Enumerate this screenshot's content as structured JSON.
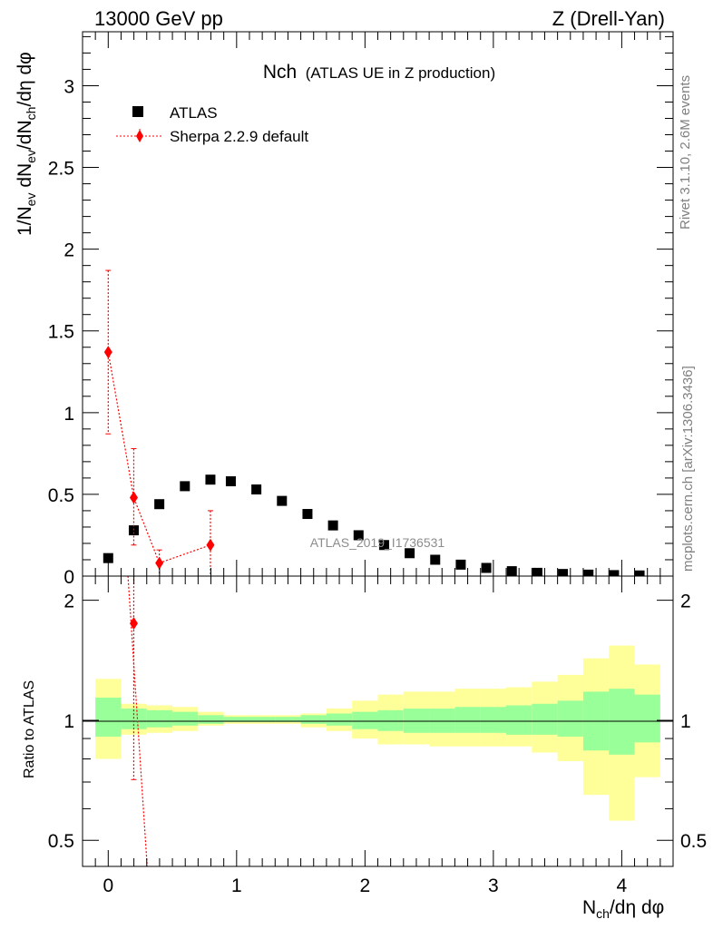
{
  "header": {
    "left": "13000 GeV pp",
    "right": "Z (Drell-Yan)"
  },
  "side_labels": {
    "rivet": "Rivet 3.1.10,  2.6M events",
    "mcplots": "mcplots.cern.ch [arXiv:1306.3436]"
  },
  "colors": {
    "data": "#000000",
    "mc": "#ff0000",
    "band_inner": "#99ff99",
    "band_outer": "#ffff99"
  },
  "chart_data": [
    {
      "type": "scatter",
      "title": "Nch",
      "subtitle": "(ATLAS UE in Z production)",
      "watermark": "ATLAS_2019_I1736531",
      "ylabel": "1/N_ev dN_ev/dN_ch/dη dφ",
      "xlim": [
        -0.2,
        4.4
      ],
      "ylim": [
        0,
        3.33
      ],
      "yticks": [
        "0",
        "0.5",
        "1",
        "1.5",
        "2",
        "2.5",
        "3"
      ],
      "legend_position": "top-left",
      "series": [
        {
          "name": "ATLAS",
          "marker": "square",
          "x": [
            0.0,
            0.199,
            0.398,
            0.597,
            0.796,
            0.955,
            1.154,
            1.353,
            1.552,
            1.751,
            1.95,
            2.149,
            2.348,
            2.547,
            2.746,
            2.945,
            3.144,
            3.343,
            3.542,
            3.741,
            3.94,
            4.139
          ],
          "y": [
            0.11,
            0.28,
            0.44,
            0.55,
            0.59,
            0.58,
            0.53,
            0.46,
            0.38,
            0.31,
            0.25,
            0.19,
            0.14,
            0.1,
            0.07,
            0.05,
            0.03,
            0.02,
            0.013,
            0.009,
            0.006,
            0.004
          ]
        },
        {
          "name": "Sherpa 2.2.9 default",
          "marker": "diamond",
          "line": "dotted",
          "x": [
            0.0,
            0.199,
            0.398,
            0.796
          ],
          "y": [
            1.37,
            0.48,
            0.08,
            0.19
          ],
          "yerr_low": [
            0.5,
            0.29,
            0.08,
            0.19
          ],
          "yerr_high": [
            0.5,
            0.3,
            0.08,
            0.21
          ]
        }
      ]
    },
    {
      "type": "area",
      "ylabel": "Ratio to ATLAS",
      "xlabel": "N_ch/dη dφ",
      "xlim": [
        -0.2,
        4.4
      ],
      "ylim": [
        0.43,
        2.3
      ],
      "yticks": [
        "0.5",
        "1",
        "2"
      ],
      "xticks": [
        "0",
        "1",
        "2",
        "3",
        "4"
      ],
      "bin_edges": [
        -0.1,
        0.1,
        0.3,
        0.5,
        0.7,
        0.9,
        1.1,
        1.3,
        1.5,
        1.7,
        1.9,
        2.1,
        2.3,
        2.5,
        2.7,
        2.9,
        3.1,
        3.3,
        3.5,
        3.7,
        3.9,
        4.1,
        4.3
      ],
      "band_inner_low": [
        0.91,
        0.95,
        0.96,
        0.97,
        0.98,
        0.99,
        0.99,
        0.99,
        0.98,
        0.97,
        0.95,
        0.94,
        0.93,
        0.93,
        0.93,
        0.93,
        0.92,
        0.92,
        0.91,
        0.84,
        0.82,
        0.88
      ],
      "band_inner_high": [
        1.14,
        1.07,
        1.06,
        1.05,
        1.03,
        1.02,
        1.02,
        1.02,
        1.03,
        1.04,
        1.05,
        1.06,
        1.07,
        1.07,
        1.08,
        1.08,
        1.09,
        1.1,
        1.12,
        1.18,
        1.2,
        1.16
      ],
      "band_outer_low": [
        0.8,
        0.92,
        0.93,
        0.94,
        0.97,
        0.98,
        0.98,
        0.98,
        0.96,
        0.94,
        0.9,
        0.87,
        0.87,
        0.86,
        0.86,
        0.86,
        0.86,
        0.83,
        0.79,
        0.65,
        0.56,
        0.72
      ],
      "band_outer_high": [
        1.27,
        1.1,
        1.09,
        1.08,
        1.05,
        1.03,
        1.03,
        1.03,
        1.04,
        1.07,
        1.12,
        1.16,
        1.18,
        1.18,
        1.2,
        1.2,
        1.21,
        1.25,
        1.3,
        1.43,
        1.54,
        1.38
      ],
      "series": [
        {
          "name": "Sherpa 2.2.9 default / ATLAS",
          "marker": "diamond",
          "x": [
            0.199
          ],
          "y": [
            1.75
          ],
          "yerr_low": [
            1.04
          ],
          "yerr_high": [
            1.1
          ]
        }
      ]
    }
  ]
}
